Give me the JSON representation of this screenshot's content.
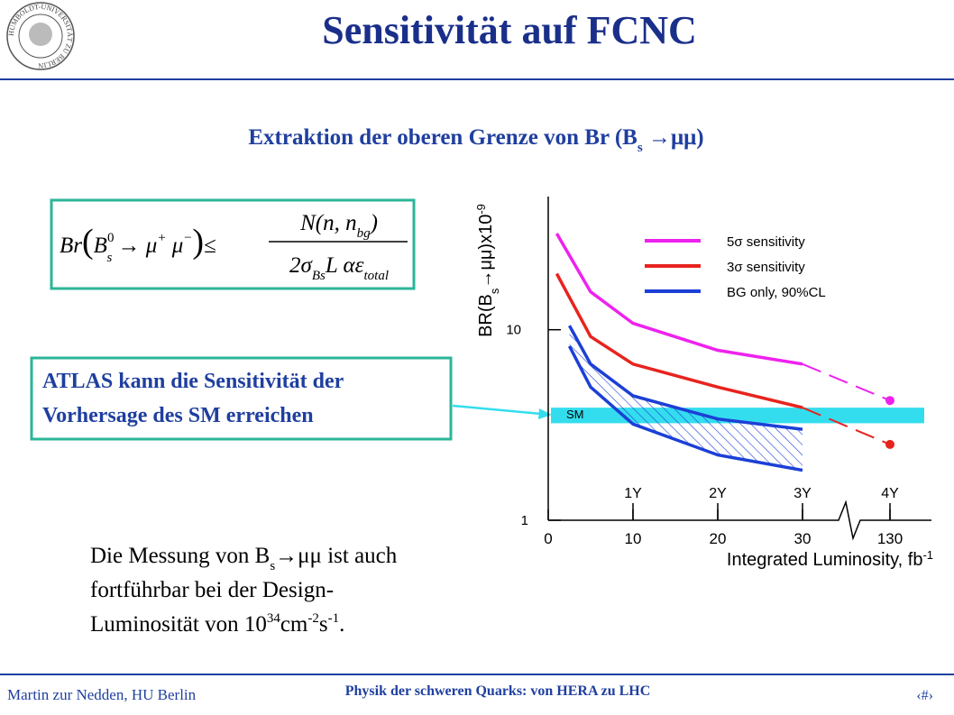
{
  "header": {
    "title": "Sensitivität auf FCNC",
    "logo_text": "HUMBOLDT-UNIVERSITÄT ZU BERLIN"
  },
  "subtitle": {
    "text": "Extraktion der oberen Grenze von Br (B",
    "sub": "s",
    "arrow": " →μμ)"
  },
  "formula": {
    "lhs": "Br",
    "paren_open": "(",
    "b": "B",
    "b_sup": "0",
    "b_sub": "s",
    "arrow": " → μ",
    "mu1_sup": "+",
    "mu2": " μ",
    "mu2_sup": "−",
    "paren_close": ")",
    "le": "≤",
    "num": "N(n, n",
    "num_sub": "bg",
    "num_end": ")",
    "den": "2σ",
    "den_sub": "Bs",
    "den_rest": "L αε",
    "den_sub2": "total"
  },
  "callout": {
    "lines": [
      "ATLAS kann die Sensitivität der",
      "Vorhersage des SM erreichen"
    ]
  },
  "body": {
    "line1": "Die Messung von B",
    "line1_sub": "s",
    "line1_arrow": "→",
    "line1_rest": "μμ ist auch",
    "line2": "fortführbar bei der Design-",
    "line3": "Luminosität von 10",
    "sup1": "34",
    "cm": "cm",
    "sup2": "-2",
    "s": "s",
    "sup3": "-1",
    "end": "."
  },
  "footer": {
    "left": "Martin zur Nedden, HU Berlin",
    "center": "Physik der schweren Quarks: von HERA zu LHC",
    "right": "‹#›"
  },
  "chart_data": {
    "type": "line",
    "log_y": true,
    "x_break": 30,
    "xlabel": {
      "text": "Integrated Luminosity, fb",
      "sup": "-1"
    },
    "ylabel": {
      "text": "BR(B",
      "sub": "s",
      "rest": "→μμ)x10",
      "sup": "-9"
    },
    "xlim": [
      0,
      130
    ],
    "xticks": [
      0,
      10,
      20,
      30,
      130
    ],
    "ylim": [
      1,
      50
    ],
    "yticks": [
      1,
      10
    ],
    "series": [
      {
        "name": "5σ sensitivity",
        "color": "#ee22ee",
        "x": [
          1,
          5,
          10,
          20,
          30,
          130
        ],
        "values": [
          32,
          15.8,
          10.8,
          7.8,
          6.6,
          4.25
        ]
      },
      {
        "name": "3σ sensitivity",
        "color": "#e8231e",
        "x": [
          1,
          5,
          10,
          20,
          30,
          130
        ],
        "values": [
          19.7,
          9.2,
          6.6,
          5.0,
          3.9,
          2.5
        ]
      },
      {
        "name": "BG only, 90%CL",
        "color": "#1c3fd6",
        "x": [
          2.5,
          5,
          10,
          20,
          30
        ],
        "values": [
          10.5,
          6.6,
          4.5,
          3.4,
          3.0
        ],
        "lower": [
          8.2,
          5.0,
          3.2,
          2.2,
          1.83
        ]
      }
    ],
    "sm_band": {
      "label": "SM",
      "range": [
        3.23,
        3.9
      ],
      "color": "#33ddee"
    },
    "year_marks": [
      {
        "x": 10,
        "label": "1Y"
      },
      {
        "x": 20,
        "label": "2Y"
      },
      {
        "x": 30,
        "label": "3Y"
      },
      {
        "x": 130,
        "label": "4Y"
      }
    ]
  }
}
